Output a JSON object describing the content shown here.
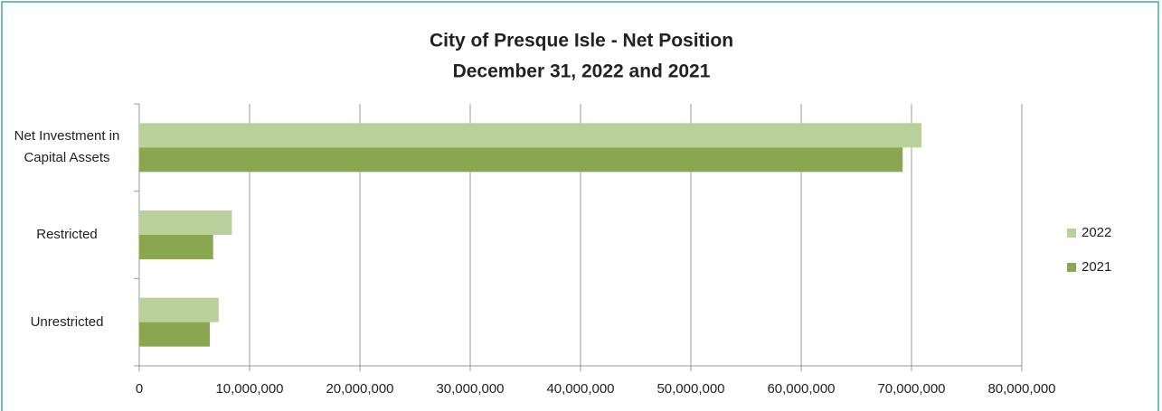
{
  "chart_data": {
    "type": "bar",
    "orientation": "horizontal",
    "title": "City of Presque Isle - Net Position",
    "subtitle": "December 31, 2022 and 2021",
    "categories": [
      "Net Investment in Capital Assets",
      "Restricted",
      "Unrestricted"
    ],
    "series": [
      {
        "name": "2022",
        "color": "#b9d09b",
        "values": [
          70900000,
          8400000,
          7200000
        ]
      },
      {
        "name": "2021",
        "color": "#8aa74f",
        "values": [
          69200000,
          6700000,
          6400000
        ]
      }
    ],
    "xlim": [
      0,
      80000000
    ],
    "xticks": [
      0,
      {
        "value": 10000000,
        "label": "10,000,000"
      },
      {
        "value": 20000000,
        "label": "20,000,000"
      },
      {
        "value": 30000000,
        "label": "30,000,000"
      },
      {
        "value": 40000000,
        "label": "40,000,000"
      },
      {
        "value": 50000000,
        "label": "50,000,000"
      },
      {
        "value": 60000000,
        "label": "60,000,000"
      },
      {
        "value": 70000000,
        "label": "70,000,000"
      },
      {
        "value": 80000000,
        "label": "80,000,000"
      }
    ],
    "grid": true,
    "legend": "right"
  }
}
